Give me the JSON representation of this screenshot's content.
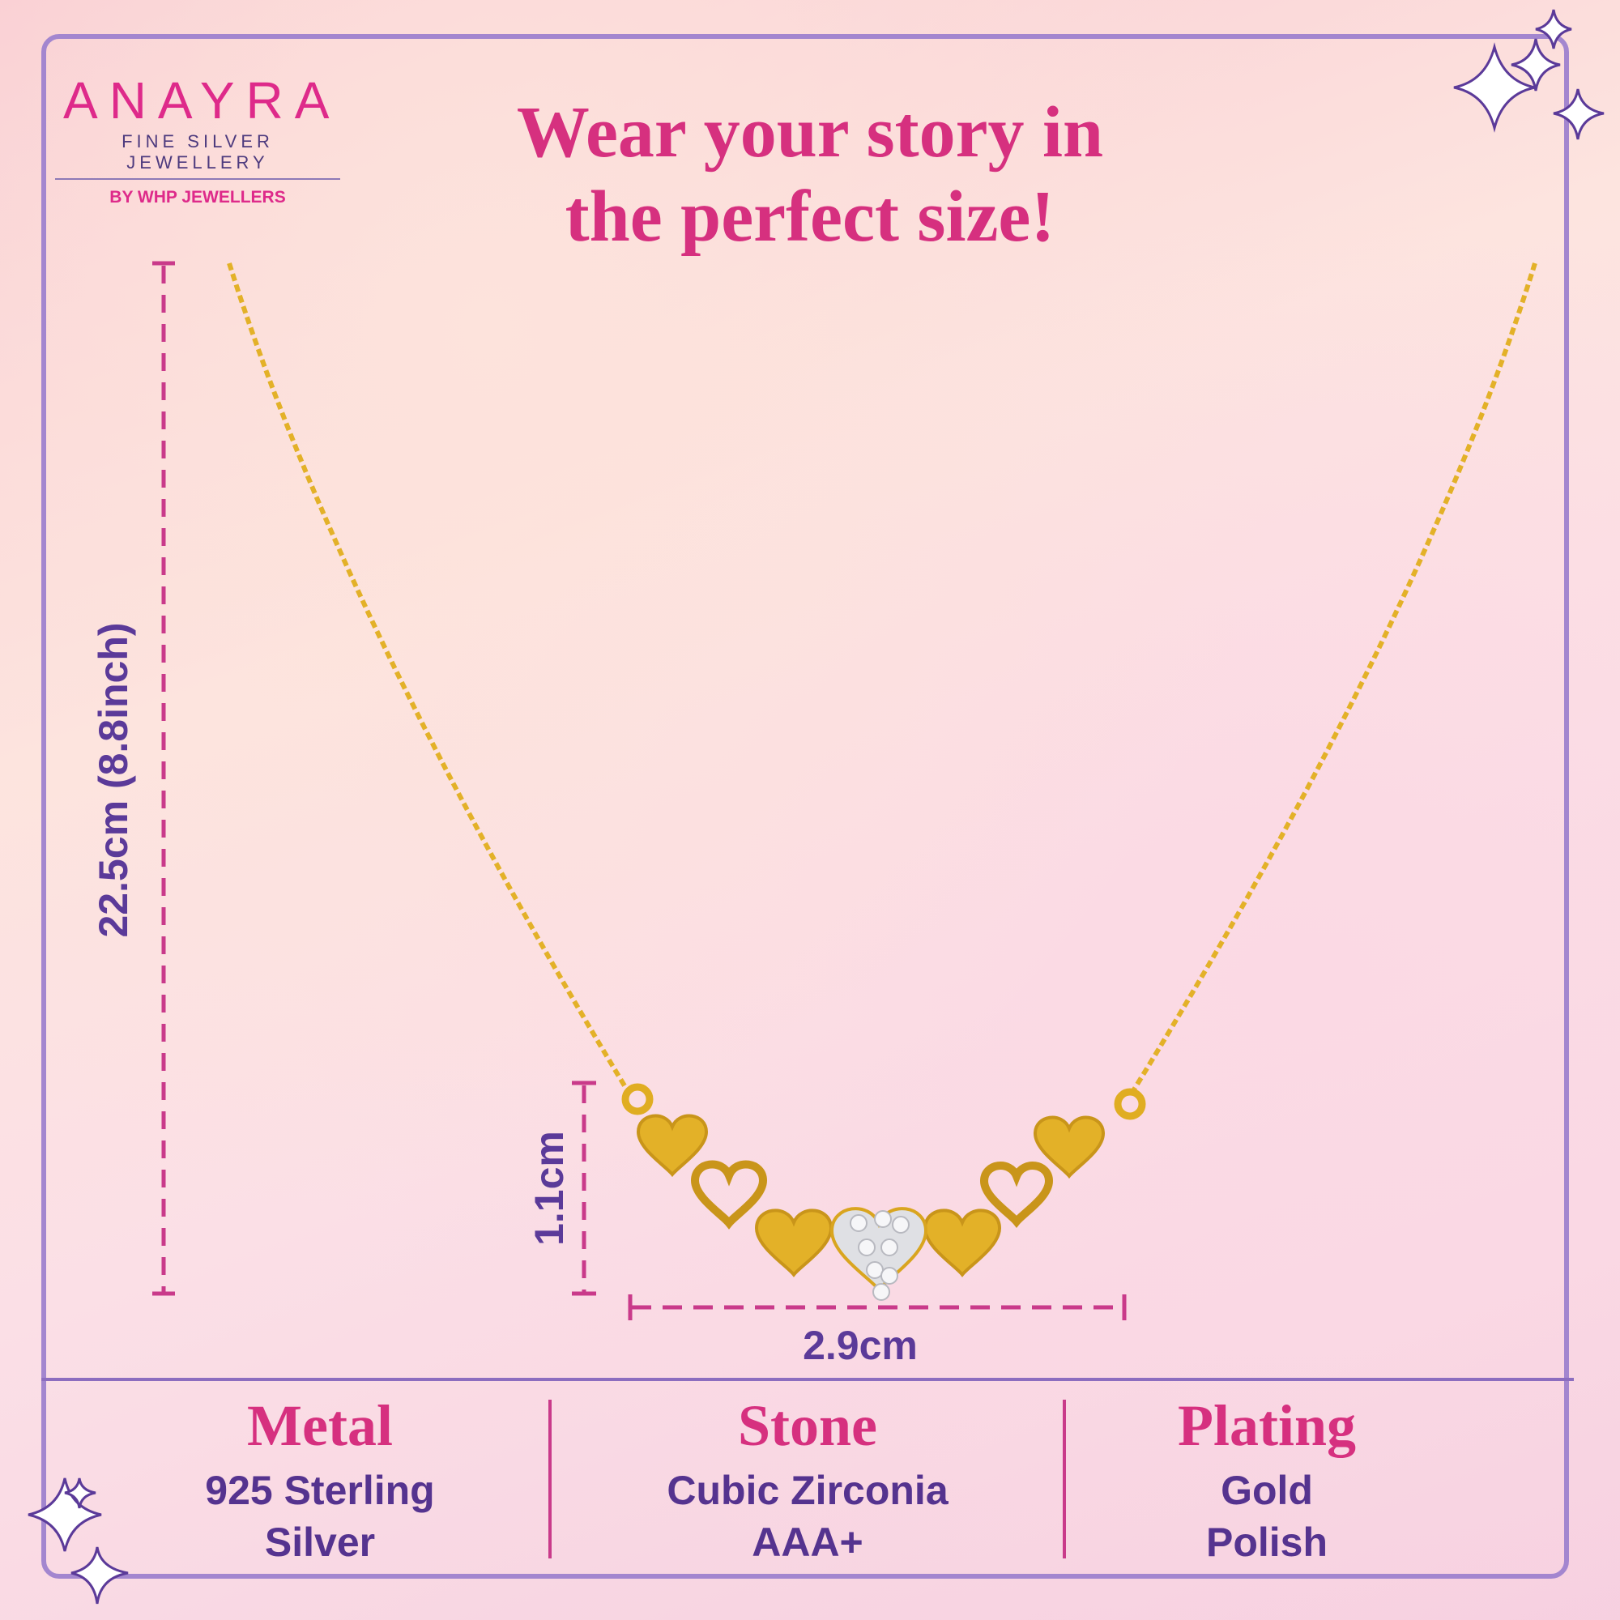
{
  "logo": {
    "brand": "ANAYRA",
    "tagline": "FINE SILVER JEWELLERY",
    "by": "BY WHP JEWELLERS"
  },
  "headline": {
    "line1": "Wear your story in",
    "line2": "the perfect size!"
  },
  "dimensions": {
    "chain_length": "22.5cm (8.8inch)",
    "pendant_height": "1.1cm",
    "pendant_width": "2.9cm"
  },
  "specs": [
    {
      "heading": "Metal",
      "line1": "925 Sterling",
      "line2": "Silver"
    },
    {
      "heading": "Stone",
      "line1": "Cubic Zirconia",
      "line2": "AAA+"
    },
    {
      "heading": "Plating",
      "line1": "Gold",
      "line2": "Polish"
    }
  ],
  "colors": {
    "accent_pink": "#d6307f",
    "text_purple": "#5b3a99",
    "frame": "#a386cf",
    "gold": "#e3b128"
  },
  "icons": [
    "sparkle-icon"
  ]
}
